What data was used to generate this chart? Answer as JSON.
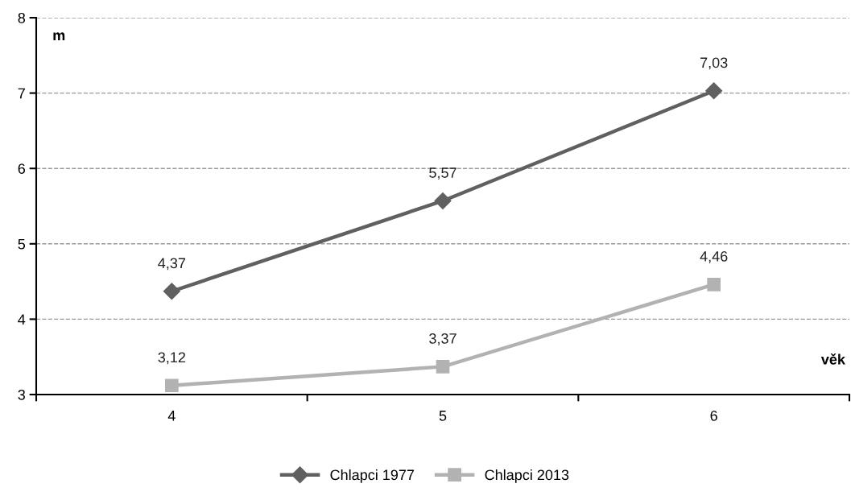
{
  "chart_data": {
    "type": "line",
    "xlabel": "věk",
    "ylabel": "m",
    "categories": [
      "4",
      "5",
      "6"
    ],
    "series": [
      {
        "name": "Chlapci 1977",
        "color": "#606060",
        "marker": "diamond",
        "values": [
          4.37,
          5.57,
          7.03
        ],
        "value_labels": [
          "4,37",
          "5,57",
          "7,03"
        ]
      },
      {
        "name": "Chlapci 2013",
        "color": "#b2b2b2",
        "marker": "square",
        "values": [
          3.12,
          3.37,
          4.46
        ],
        "value_labels": [
          "3,12",
          "3,37",
          "4,46"
        ]
      }
    ],
    "ylim": [
      3,
      8
    ],
    "yticks": [
      3,
      4,
      5,
      6,
      7,
      8
    ],
    "grid": "y",
    "legend": "bottom",
    "line_style": "solid"
  }
}
